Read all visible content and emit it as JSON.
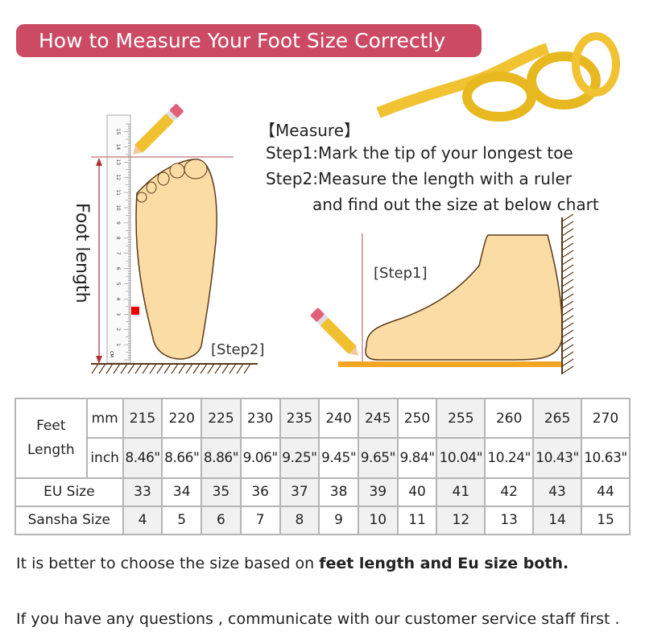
{
  "title": "How to Measure Your Foot Size Correctly",
  "measure": {
    "heading": "【Measure】",
    "step1": "Step1:Mark the tip of your longest toe",
    "step2_line1": "Step2:Measure the length with a ruler",
    "step2_line2": "and find out the size at below chart"
  },
  "illustration": {
    "foot_length_label": "Foot length",
    "step1_tag": "[Step1]",
    "step2_tag": "[Step2]",
    "ruler_unit": "CM",
    "ruler_numbers": [
      "1",
      "2",
      "3",
      "4",
      "5",
      "6",
      "7",
      "8",
      "9",
      "10",
      "11",
      "12",
      "13",
      "14",
      "15"
    ]
  },
  "size_table": {
    "feet_length_label": "Feet Length",
    "mm_label": "mm",
    "inch_label": "inch",
    "eu_label": "EU Size",
    "sansha_label": "Sansha Size",
    "mm": [
      "215",
      "220",
      "225",
      "230",
      "235",
      "240",
      "245",
      "250",
      "255",
      "260",
      "265",
      "270"
    ],
    "inch": [
      "8.46\"",
      "8.66\"",
      "8.86\"",
      "9.06\"",
      "9.25\"",
      "9.45\"",
      "9.65\"",
      "9.84\"",
      "10.04\"",
      "10.24\"",
      "10.43\"",
      "10.63\""
    ],
    "eu": [
      "33",
      "34",
      "35",
      "36",
      "37",
      "38",
      "39",
      "40",
      "41",
      "42",
      "43",
      "44"
    ],
    "sansha": [
      "4",
      "5",
      "6",
      "7",
      "8",
      "9",
      "10",
      "11",
      "12",
      "13",
      "14",
      "15"
    ]
  },
  "notes": {
    "line1_prefix": "It is better to choose the size based on ",
    "line1_bold": "feet length and Eu size both.",
    "line2": "If you have any questions , communicate with our customer service staff first ."
  },
  "colors": {
    "banner": "#cc4a63",
    "foot": "#fbdca4",
    "pencil": "#f0c030",
    "floor": "#f5a623"
  }
}
